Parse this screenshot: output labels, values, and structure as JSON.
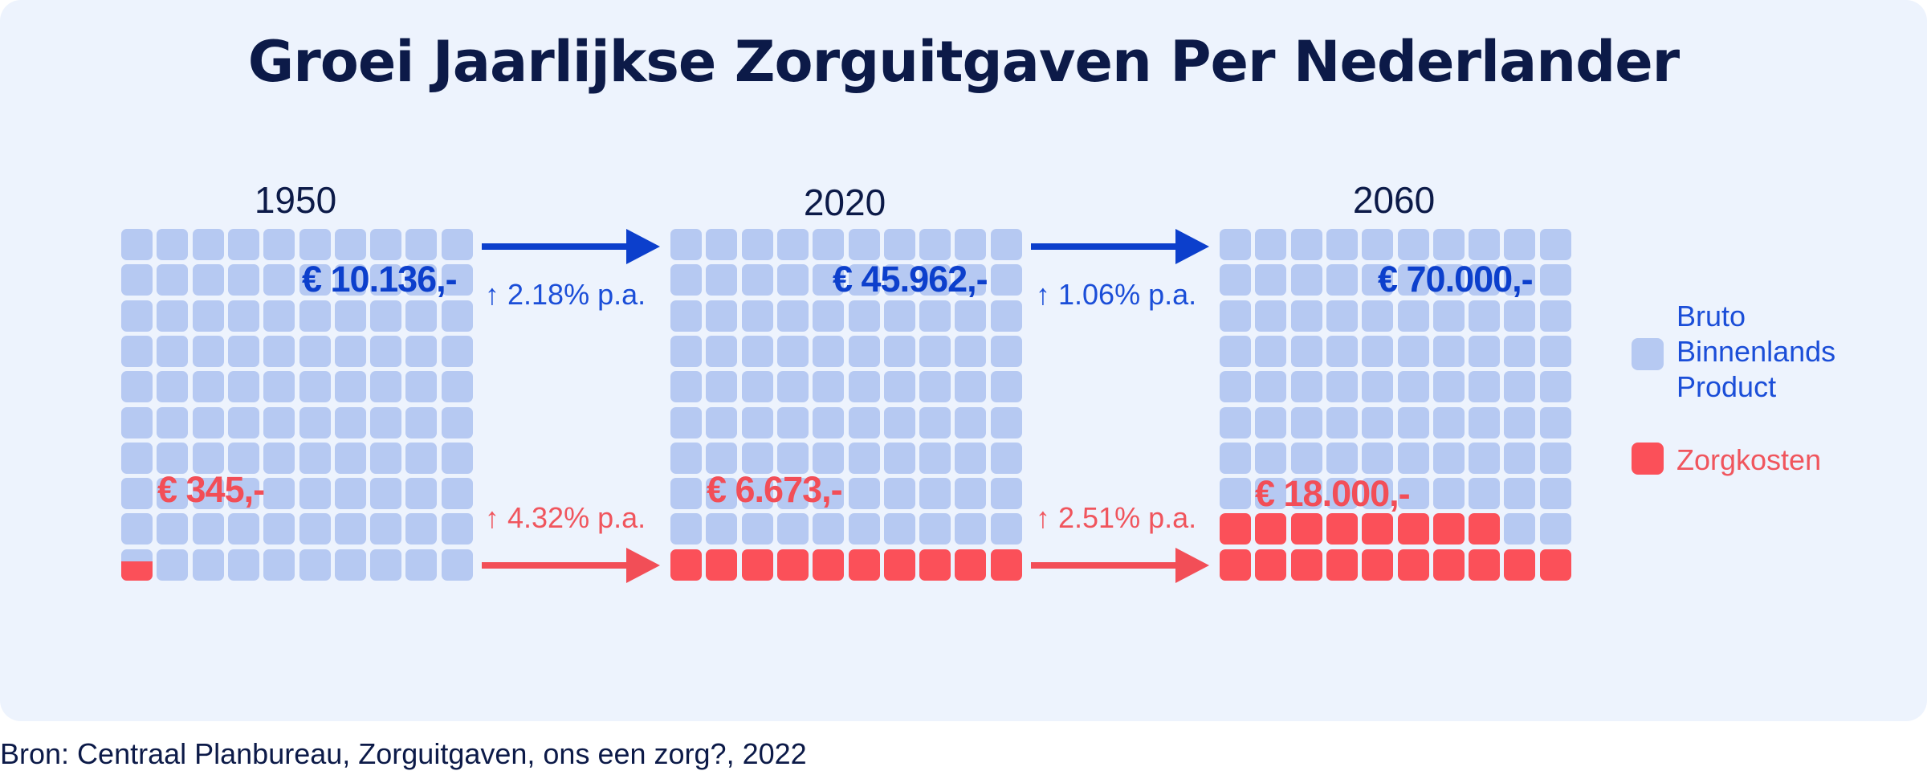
{
  "chart_data": {
    "type": "waffle",
    "title": "Groei Jaarlijkse Zorguitgaven Per Nederlander",
    "units_per_grid": 100,
    "panels": [
      {
        "year": "1950",
        "gdp_label": "€ 10.136,-",
        "care_label": "€ 345,-",
        "gdp_value": 10136,
        "care_value": 345,
        "care_cells": 0.6
      },
      {
        "year": "2020",
        "gdp_label": "€ 45.962,-",
        "care_label": "€ 6.673,-",
        "gdp_value": 45962,
        "care_value": 6673,
        "care_cells": 10
      },
      {
        "year": "2060",
        "gdp_label": "€ 70.000,-",
        "care_label": "€ 18.000,-",
        "gdp_value": 70000,
        "care_value": 18000,
        "care_cells": 18
      }
    ],
    "growth": [
      {
        "gdp": "↑ 2.18% p.a.",
        "care": "↑ 4.32% p.a."
      },
      {
        "gdp": "↑ 1.06% p.a.",
        "care": "↑ 2.51% p.a."
      }
    ],
    "legend": [
      {
        "label": "Bruto Binnenlands Product",
        "color": "#b6c9f2"
      },
      {
        "label": "Zorgkosten",
        "color": "#fb5059"
      }
    ],
    "colors": {
      "gdp_cell": "#b6c9f2",
      "care_cell": "#fb5059",
      "gdp_arrow": "#0c3fcc",
      "care_arrow": "#f24e57"
    }
  },
  "source": "Bron: Centraal Planbureau, Zorguitgaven, ons een zorg?, 2022"
}
